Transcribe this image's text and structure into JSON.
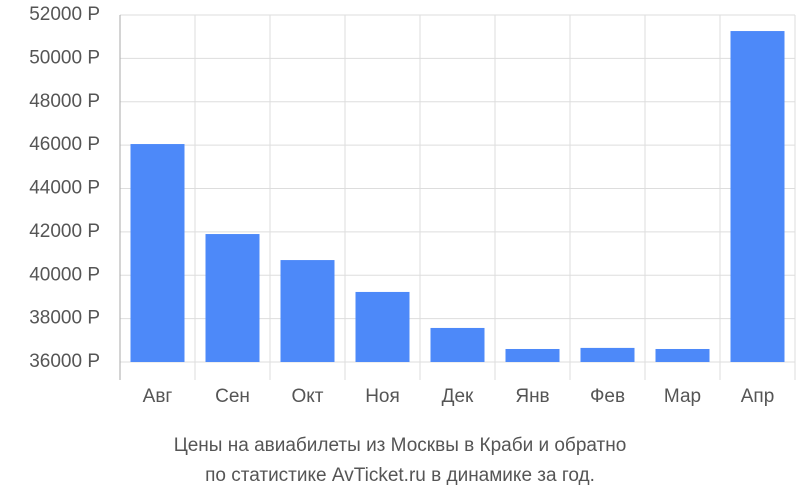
{
  "chart_data": {
    "type": "bar",
    "title": "Цены на авиабилеты из Москвы в Краби и обратно",
    "subtitle": "по статистике AvTicket.ru в динамике за год.",
    "categories": [
      "Авг",
      "Сен",
      "Окт",
      "Ноя",
      "Дек",
      "Янв",
      "Фев",
      "Мар",
      "Апр"
    ],
    "values": [
      46050,
      41900,
      40700,
      39230,
      37570,
      36600,
      36650,
      36600,
      51260
    ],
    "color": "#4d89f9",
    "ylim": [
      36000,
      52000
    ],
    "yticks": [
      {
        "value": 36000,
        "label": "36000 Р"
      },
      {
        "value": 38000,
        "label": "38000 Р"
      },
      {
        "value": 40000,
        "label": "40000 Р"
      },
      {
        "value": 42000,
        "label": "42000 Р"
      },
      {
        "value": 44000,
        "label": "44000 Р"
      },
      {
        "value": 46000,
        "label": "46000 Р"
      },
      {
        "value": 48000,
        "label": "48000 Р"
      },
      {
        "value": 50000,
        "label": "50000 Р"
      },
      {
        "value": 52000,
        "label": "52000 Р"
      }
    ],
    "grid": true
  }
}
